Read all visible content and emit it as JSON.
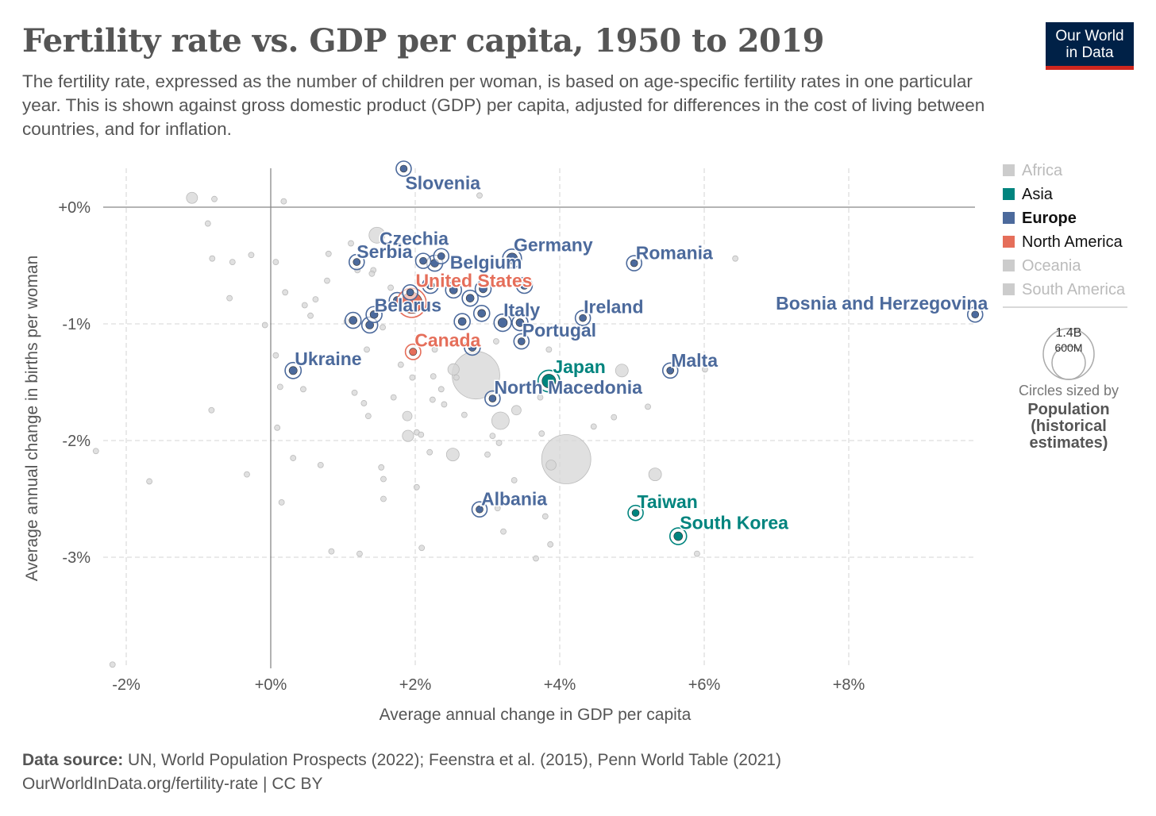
{
  "title": "Fertility rate vs. GDP per capita, 1950 to 2019",
  "subtitle": "The fertility rate, expressed as the number of children per woman, is based on age-specific fertility rates in one particular year. This is shown against gross domestic product (GDP) per capita, adjusted for differences in the cost of living between countries, and for inflation.",
  "logo": {
    "line1": "Our World",
    "line2": "in Data"
  },
  "footer": {
    "source_label": "Data source:",
    "source_text": " UN, World Population Prospects (2022); Feenstra et al. (2015), Penn World Table (2021)",
    "link": "OurWorldInData.org/fertility-rate | CC BY"
  },
  "legend": {
    "items": [
      {
        "label": "Africa",
        "color": "#cccccc",
        "active": false
      },
      {
        "label": "Asia",
        "color": "#00847e",
        "active": true
      },
      {
        "label": "Europe",
        "color": "#4c6a9c",
        "active": true,
        "bold": true
      },
      {
        "label": "North America",
        "color": "#e56e5a",
        "active": true
      },
      {
        "label": "Oceania",
        "color": "#cccccc",
        "active": false
      },
      {
        "label": "South America",
        "color": "#cccccc",
        "active": false
      }
    ],
    "size_large": "1.4B",
    "size_small": "600M",
    "size_caption": "Circles sized by",
    "size_var_1": "Population",
    "size_var_2": "(historical",
    "size_var_3": "estimates)"
  },
  "chart_data": {
    "type": "scatter",
    "title": "Fertility rate vs. GDP per capita, 1950 to 2019",
    "xlabel": "Average annual change in GDP per capita",
    "ylabel": "Average annual change in births per woman",
    "xlim": [
      -2.4,
      9.8
    ],
    "ylim": [
      -3.95,
      0.35
    ],
    "xticks": [
      {
        "v": -2,
        "label": "-2%"
      },
      {
        "v": 0,
        "label": "+0%"
      },
      {
        "v": 2,
        "label": "+2%"
      },
      {
        "v": 4,
        "label": "+4%"
      },
      {
        "v": 6,
        "label": "+6%"
      },
      {
        "v": 8,
        "label": "+8%"
      }
    ],
    "yticks": [
      {
        "v": 0,
        "label": "+0%"
      },
      {
        "v": -1,
        "label": "-1%"
      },
      {
        "v": -2,
        "label": "-2%"
      },
      {
        "v": -3,
        "label": "-3%"
      }
    ],
    "grid": true,
    "legend_position": "right",
    "colors": {
      "Asia": "#00847e",
      "Europe": "#4c6a9c",
      "North America": "#e56e5a",
      "other": "#cccccc"
    },
    "labeled": [
      {
        "name": "Slovenia",
        "region": "Europe",
        "x": 1.84,
        "y": 0.33,
        "pop": 2
      },
      {
        "name": "Czechia",
        "region": "Europe",
        "x": 2.11,
        "y": -0.46,
        "pop": 10
      },
      {
        "name": "Serbia",
        "region": "Europe",
        "x": 1.19,
        "y": -0.47,
        "pop": 7
      },
      {
        "name": "Germany",
        "region": "Europe",
        "x": 3.34,
        "y": -0.44,
        "pop": 80
      },
      {
        "name": "Belgium",
        "region": "Europe",
        "x": 2.36,
        "y": -0.42,
        "pop": 11
      },
      {
        "name": "Romania",
        "region": "Europe",
        "x": 5.03,
        "y": -0.48,
        "pop": 19
      },
      {
        "name": "United States",
        "region": "North America",
        "x": 1.95,
        "y": -0.82,
        "pop": 300
      },
      {
        "name": "Belarus",
        "region": "Europe",
        "x": 1.93,
        "y": -0.73,
        "pop": 9
      },
      {
        "name": "Italy",
        "region": "Europe",
        "x": 3.21,
        "y": -0.99,
        "pop": 58
      },
      {
        "name": "Portugal",
        "region": "Europe",
        "x": 3.47,
        "y": -1.15,
        "pop": 10
      },
      {
        "name": "Ireland",
        "region": "Europe",
        "x": 4.32,
        "y": -0.95,
        "pop": 5
      },
      {
        "name": "Bosnia and Herzegovina",
        "region": "Europe",
        "x": 9.75,
        "y": -0.92,
        "pop": 3
      },
      {
        "name": "Canada",
        "region": "North America",
        "x": 1.97,
        "y": -1.24,
        "pop": 37
      },
      {
        "name": "Ukraine",
        "region": "Europe",
        "x": 0.31,
        "y": -1.4,
        "pop": 44
      },
      {
        "name": "Malta",
        "region": "Europe",
        "x": 5.53,
        "y": -1.4,
        "pop": 0.5
      },
      {
        "name": "Japan",
        "region": "Asia",
        "x": 3.85,
        "y": -1.49,
        "pop": 126
      },
      {
        "name": "North Macedonia",
        "region": "Europe",
        "x": 3.07,
        "y": -1.64,
        "pop": 2
      },
      {
        "name": "Albania",
        "region": "Europe",
        "x": 2.89,
        "y": -2.59,
        "pop": 3
      },
      {
        "name": "Taiwan",
        "region": "Asia",
        "x": 5.05,
        "y": -2.62,
        "pop": 23
      },
      {
        "name": "South Korea",
        "region": "Asia",
        "x": 5.64,
        "y": -2.82,
        "pop": 51
      }
    ],
    "europe_unlabeled": [
      [
        1.14,
        -0.97
      ],
      [
        1.37,
        -1.01
      ],
      [
        1.43,
        -0.92
      ],
      [
        2.65,
        -0.98
      ],
      [
        2.92,
        -0.91
      ],
      [
        2.76,
        -0.78
      ],
      [
        2.79,
        -1.2
      ],
      [
        2.94,
        -0.7
      ],
      [
        3.51,
        -0.67
      ],
      [
        2.53,
        -0.71
      ],
      [
        2.27,
        -0.48
      ],
      [
        2.21,
        -0.67
      ],
      [
        1.75,
        -0.8
      ],
      [
        3.45,
        -0.99
      ]
    ],
    "others": [
      [
        -1.09,
        0.08,
        67
      ],
      [
        1.47,
        -0.24,
        137
      ],
      [
        3.18,
        -1.83,
        165
      ],
      [
        2.52,
        -2.12,
        88
      ],
      [
        5.32,
        -2.29,
        88
      ],
      [
        4.86,
        -1.4,
        88
      ],
      [
        2.84,
        -1.44,
        1230
      ],
      [
        4.09,
        -2.16,
        1314
      ],
      [
        1.9,
        -1.96,
        70
      ],
      [
        1.89,
        -1.79,
        49
      ],
      [
        2.53,
        -1.39,
        70
      ],
      [
        3.4,
        -1.74,
        49
      ],
      [
        3.88,
        -2.21,
        55
      ],
      [
        -0.78,
        0.07
      ],
      [
        0.18,
        0.05
      ],
      [
        2.89,
        0.1
      ],
      [
        -0.87,
        -0.14
      ],
      [
        -0.81,
        -0.44
      ],
      [
        -0.53,
        -0.47
      ],
      [
        -0.27,
        -0.41
      ],
      [
        0.07,
        -0.47
      ],
      [
        0.2,
        -0.73
      ],
      [
        -0.57,
        -0.78
      ],
      [
        -0.08,
        -1.01
      ],
      [
        0.07,
        -1.27
      ],
      [
        0.13,
        -1.54
      ],
      [
        -0.82,
        -1.74
      ],
      [
        0.09,
        -1.89
      ],
      [
        0.31,
        -2.15
      ],
      [
        0.69,
        -2.21
      ],
      [
        -0.33,
        -2.29
      ],
      [
        -1.68,
        -2.35
      ],
      [
        -2.42,
        -2.09
      ],
      [
        0.15,
        -2.53
      ],
      [
        0.84,
        -2.95
      ],
      [
        1.23,
        -2.97
      ],
      [
        -2.19,
        -3.92
      ],
      [
        0.47,
        -0.84
      ],
      [
        0.62,
        -0.79
      ],
      [
        0.78,
        -0.63
      ],
      [
        1.11,
        -0.31
      ],
      [
        1.2,
        -0.54
      ],
      [
        1.42,
        -0.54
      ],
      [
        1.05,
        -0.98
      ],
      [
        1.33,
        -1.22
      ],
      [
        1.55,
        -1.03
      ],
      [
        0.45,
        -1.56
      ],
      [
        1.16,
        -1.59
      ],
      [
        1.29,
        -1.68
      ],
      [
        1.35,
        -1.79
      ],
      [
        1.7,
        -1.63
      ],
      [
        1.53,
        -2.23
      ],
      [
        1.56,
        -2.33
      ],
      [
        1.56,
        -2.5
      ],
      [
        2.02,
        -1.93
      ],
      [
        2.08,
        -1.95
      ],
      [
        2.02,
        -2.4
      ],
      [
        2.09,
        -2.92
      ],
      [
        2.2,
        -2.1
      ],
      [
        2.24,
        -1.65
      ],
      [
        2.36,
        -1.56
      ],
      [
        2.4,
        -1.69
      ],
      [
        2.57,
        -1.46
      ],
      [
        2.68,
        -1.78
      ],
      [
        3.0,
        -2.12
      ],
      [
        3.07,
        -1.96
      ],
      [
        3.16,
        -2.02
      ],
      [
        3.14,
        -2.58
      ],
      [
        3.22,
        -2.78
      ],
      [
        3.37,
        -2.34
      ],
      [
        3.12,
        -1.15
      ],
      [
        3.75,
        -1.94
      ],
      [
        3.8,
        -2.65
      ],
      [
        3.87,
        -2.89
      ],
      [
        3.67,
        -3.01
      ],
      [
        3.85,
        -1.22
      ],
      [
        3.73,
        -1.63
      ],
      [
        4.47,
        -1.88
      ],
      [
        4.75,
        -1.8
      ],
      [
        5.22,
        -1.71
      ],
      [
        5.9,
        -2.97
      ],
      [
        6.43,
        -0.44
      ],
      [
        6.01,
        -1.39
      ],
      [
        1.66,
        -0.69
      ],
      [
        1.8,
        -1.35
      ],
      [
        1.96,
        -1.46
      ],
      [
        2.25,
        -1.45
      ],
      [
        2.27,
        -1.22
      ],
      [
        0.55,
        -0.93
      ],
      [
        0.8,
        -0.4
      ],
      [
        1.4,
        -0.57
      ]
    ]
  }
}
